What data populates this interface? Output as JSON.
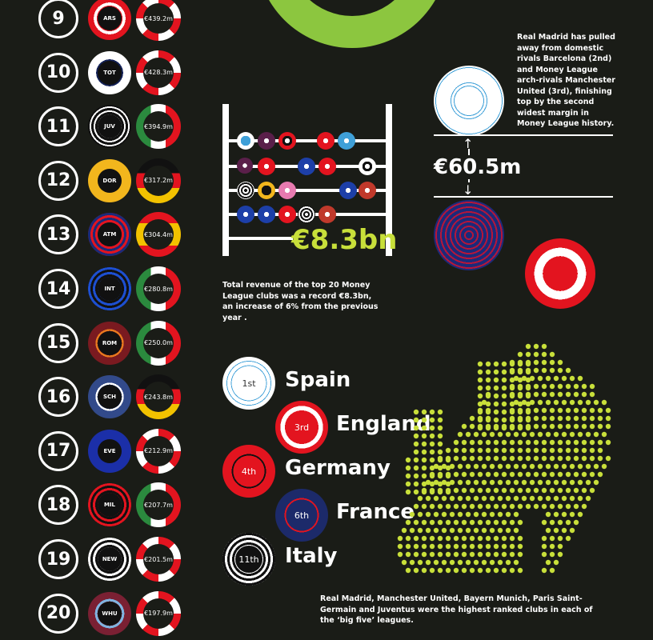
{
  "ranking": [
    {
      "rank": "9",
      "club": "ARS",
      "revenue": "€439.2m",
      "club_bg": "radial-gradient(circle,#e3141f 0 42%,#fff 42% 52%,#e3141f 52%)",
      "rev_bg": "conic-gradient(#e3141f 0 12.5%,#fff 12.5% 25%,#e3141f 25% 37.5%,#fff 37.5% 50%,#e3141f 50% 62.5%,#fff 62.5% 75%,#e3141f 75% 87.5%,#fff 87.5%)"
    },
    {
      "rank": "10",
      "club": "TOT",
      "revenue": "€428.3m",
      "club_bg": "radial-gradient(circle,#fff 0 34%,#142257 34% 44%,#fff 44%)",
      "rev_bg": "conic-gradient(#e3141f 0 12.5%,#fff 12.5% 25%,#e3141f 25% 37.5%,#fff 37.5% 50%,#e3141f 50% 62.5%,#fff 62.5% 75%,#e3141f 75% 87.5%,#fff 87.5%)"
    },
    {
      "rank": "11",
      "club": "JUV",
      "revenue": "€394.9m",
      "club_bg": "repeating-radial-gradient(circle,#111 0 3px,#fff 3px 5px)",
      "rev_bg": "linear-gradient(90deg,#2b8a3e 0 33%,#fff 33% 66%,#e3141f 66%)"
    },
    {
      "rank": "12",
      "club": "DOR",
      "revenue": "€317.2m",
      "club_bg": "radial-gradient(circle,#111 0 38%,#f2b61d 38%)",
      "rev_bg": "linear-gradient(180deg,#111 0 33%,#e3141f 33% 66%,#f2c200 66%)"
    },
    {
      "rank": "13",
      "club": "ATM",
      "revenue": "€304.4m",
      "club_bg": "repeating-radial-gradient(circle,#1c2a7a 0 3px,#e3141f 3px 6px)",
      "rev_bg": "linear-gradient(180deg,#e3141f 0 25%,#f2c200 25% 75%,#e3141f 75%)"
    },
    {
      "rank": "14",
      "club": "INT",
      "revenue": "€280.8m",
      "club_bg": "repeating-radial-gradient(circle,#1d4fd1 0 3px,#111 3px 6px)",
      "rev_bg": "linear-gradient(90deg,#2b8a3e 0 33%,#fff 33% 66%,#e3141f 66%)"
    },
    {
      "rank": "15",
      "club": "ROM",
      "revenue": "€250.0m",
      "club_bg": "radial-gradient(circle,#7a1a20 0 40%,#e87a1e 40% 46%,#7a1a20 46%)",
      "rev_bg": "linear-gradient(90deg,#2b8a3e 0 33%,#fff 33% 66%,#e3141f 66%)"
    },
    {
      "rank": "16",
      "club": "SCH",
      "revenue": "€243.8m",
      "club_bg": "radial-gradient(circle,#324a8a 0 40%,#fff 40% 46%,#324a8a 46%)",
      "rev_bg": "linear-gradient(180deg,#111 0 33%,#e3141f 33% 66%,#f2c200 66%)"
    },
    {
      "rank": "17",
      "club": "EVE",
      "revenue": "€212.9m",
      "club_bg": "radial-gradient(circle,#1b2fa8 0 100%)",
      "rev_bg": "conic-gradient(#e3141f 0 12.5%,#fff 12.5% 25%,#e3141f 25% 37.5%,#fff 37.5% 50%,#e3141f 50% 62.5%,#fff 62.5% 75%,#e3141f 75% 87.5%,#fff 87.5%)"
    },
    {
      "rank": "18",
      "club": "MIL",
      "revenue": "€207.7m",
      "club_bg": "repeating-radial-gradient(circle,#e3141f 0 3px,#111 3px 6px)",
      "rev_bg": "linear-gradient(90deg,#2b8a3e 0 33%,#fff 33% 66%,#e3141f 66%)"
    },
    {
      "rank": "19",
      "club": "NEW",
      "revenue": "€201.5m",
      "club_bg": "repeating-radial-gradient(circle,#fff 0 3px,#111 3px 6px)",
      "rev_bg": "conic-gradient(#e3141f 0 12.5%,#fff 12.5% 25%,#e3141f 25% 37.5%,#fff 37.5% 50%,#e3141f 50% 62.5%,#fff 62.5% 75%,#e3141f 75% 87.5%,#fff 87.5%)"
    },
    {
      "rank": "20",
      "club": "WHU",
      "revenue": "€197.9m",
      "club_bg": "radial-gradient(circle,#7a2033 0 40%,#7fb3e0 40% 48%,#7a2033 48%)",
      "rev_bg": "conic-gradient(#e3141f 0 12.5%,#fff 12.5% 25%,#e3141f 25% 37.5%,#fff 37.5% 50%,#e3141f 50% 62.5%,#fff 62.5% 75%,#e3141f 75% 87.5%,#fff 87.5%)"
    }
  ],
  "total": {
    "value": "€8.3bn",
    "caption": "Total revenue of the top 20 Money League clubs was a record €8.3bn, an increase of 6% from the previous year ."
  },
  "margin": {
    "value": "€60.5m",
    "caption": "Real Madrid has pulled away from domestic rivals Barcelona (2nd) and Money League arch-rivals Manchester United (3rd), finishing top by the second widest margin in Money League history."
  },
  "leagues": [
    {
      "country": "Spain",
      "rank": "1st"
    },
    {
      "country": "England",
      "rank": "3rd"
    },
    {
      "country": "Germany",
      "rank": "4th"
    },
    {
      "country": "France",
      "rank": "6th"
    },
    {
      "country": "Italy",
      "rank": "11th"
    }
  ],
  "leagues_caption": "Real Madrid, Manchester United, Bayern Munich, Paris Saint-Germain and Juventus were the highest ranked clubs in each of the ‘big five’ leagues.",
  "colors": {
    "background": "#1a1c17",
    "accent_green": "#8cc63f",
    "map_dot": "#c8df3a",
    "red": "#e3141f"
  }
}
